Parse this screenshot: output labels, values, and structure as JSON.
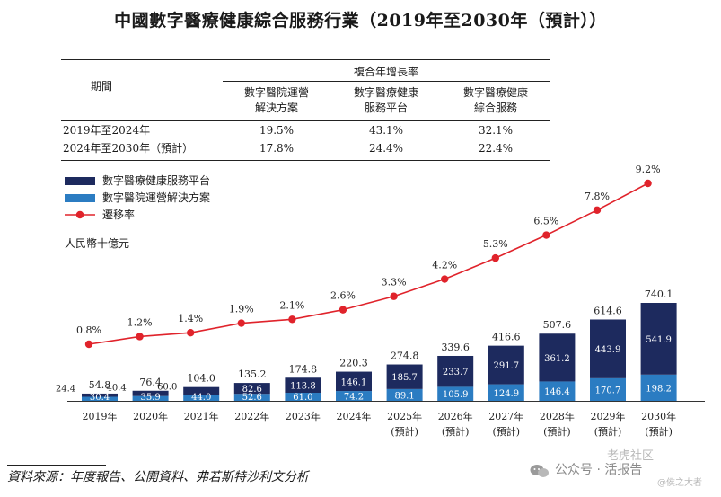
{
  "title": "中國數字醫療健康綜合服務行業（2019年至2030年（預計））",
  "cagr_table": {
    "period_header": "期間",
    "group_header": "複合年增長率",
    "columns": [
      {
        "line1": "數字醫院運營",
        "line2": "解決方案"
      },
      {
        "line1": "數字醫療健康",
        "line2": "服務平台"
      },
      {
        "line1": "數字醫療健康",
        "line2": "綜合服務"
      }
    ],
    "rows": [
      {
        "period": "2019年至2024年",
        "values": [
          "19.5%",
          "43.1%",
          "32.1%"
        ]
      },
      {
        "period": "2024年至2030年（預計）",
        "values": [
          "17.8%",
          "24.4%",
          "22.4%"
        ]
      }
    ]
  },
  "legend": [
    {
      "label": "數字醫療健康服務平台",
      "color": "#1d2a5e",
      "kind": "bar"
    },
    {
      "label": "數字醫院運營解決方案",
      "color": "#2b7cc2",
      "kind": "bar"
    },
    {
      "label": "遷移率",
      "color": "#e0232b",
      "kind": "line"
    }
  ],
  "unit_label": "人民幣十億元",
  "chart_data": {
    "type": "bar",
    "stacked": true,
    "categories": [
      "2019年",
      "2020年",
      "2021年",
      "2022年",
      "2023年",
      "2024年",
      "2025年",
      "2026年",
      "2027年",
      "2028年",
      "2029年",
      "2030年"
    ],
    "category_sub": [
      "",
      "",
      "",
      "",
      "",
      "",
      "(預計)",
      "(預計)",
      "(預計)",
      "(預計)",
      "(預計)",
      "(預計)"
    ],
    "series": [
      {
        "name": "數字醫院運營解決方案",
        "values": [
          30.4,
          35.9,
          44.0,
          52.6,
          61.0,
          74.2,
          89.1,
          105.9,
          124.9,
          146.4,
          170.7,
          198.2
        ],
        "color": "#2b7cc2"
      },
      {
        "name": "數字醫療健康服務平台",
        "values": [
          24.4,
          40.4,
          60.0,
          82.6,
          113.8,
          146.1,
          185.7,
          233.7,
          291.7,
          361.2,
          443.9,
          541.9
        ],
        "color": "#1d2a5e"
      }
    ],
    "totals": [
      54.8,
      76.4,
      104.0,
      135.2,
      174.8,
      220.3,
      274.8,
      339.6,
      416.6,
      507.6,
      614.6,
      740.1
    ],
    "line_series": {
      "name": "遷移率",
      "values": [
        0.8,
        1.2,
        1.4,
        1.9,
        2.1,
        2.6,
        3.3,
        4.2,
        5.3,
        6.5,
        7.8,
        9.2
      ],
      "labels": [
        "0.8%",
        "1.2%",
        "1.4%",
        "1.9%",
        "2.1%",
        "2.6%",
        "3.3%",
        "4.2%",
        "5.3%",
        "6.5%",
        "7.8%",
        "9.2%"
      ],
      "color": "#e0232b"
    },
    "ylabel": "人民幣十億元"
  },
  "source": "資料來源：年度報告、公開資料、弗若斯特沙利文分析",
  "watermark": {
    "text": "公众号 · 活报告",
    "right_text": "老虎社区",
    "small_text": "@侯之大者"
  }
}
